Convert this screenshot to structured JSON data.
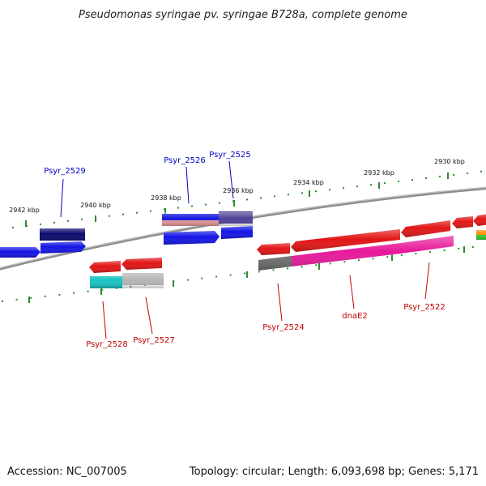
{
  "title": "Pseudomonas syringae pv. syringae B728a, complete genome",
  "footer": {
    "accession": "Accession: NC_007005",
    "summary": "Topology: circular; Length: 6,093,698 bp; Genes: 5,171"
  },
  "colors": {
    "tick": "#2e8b2e",
    "backbone": "#808080",
    "plus_label": "#0000c0",
    "minus_label": "#c00000"
  },
  "ticks": {
    "plus_row": [
      "2942 kbp",
      "2940 kbp",
      "2938 kbp",
      "2936 kbp",
      "2934 kbp",
      "2932 kbp",
      "2930 kbp"
    ]
  },
  "genes": {
    "plus": [
      "Psyr_2529",
      "Psyr_2526",
      "Psyr_2525"
    ],
    "minus": [
      "Psyr_2528",
      "Psyr_2527",
      "Psyr_2524",
      "dnaE2",
      "Psyr_2522"
    ]
  }
}
